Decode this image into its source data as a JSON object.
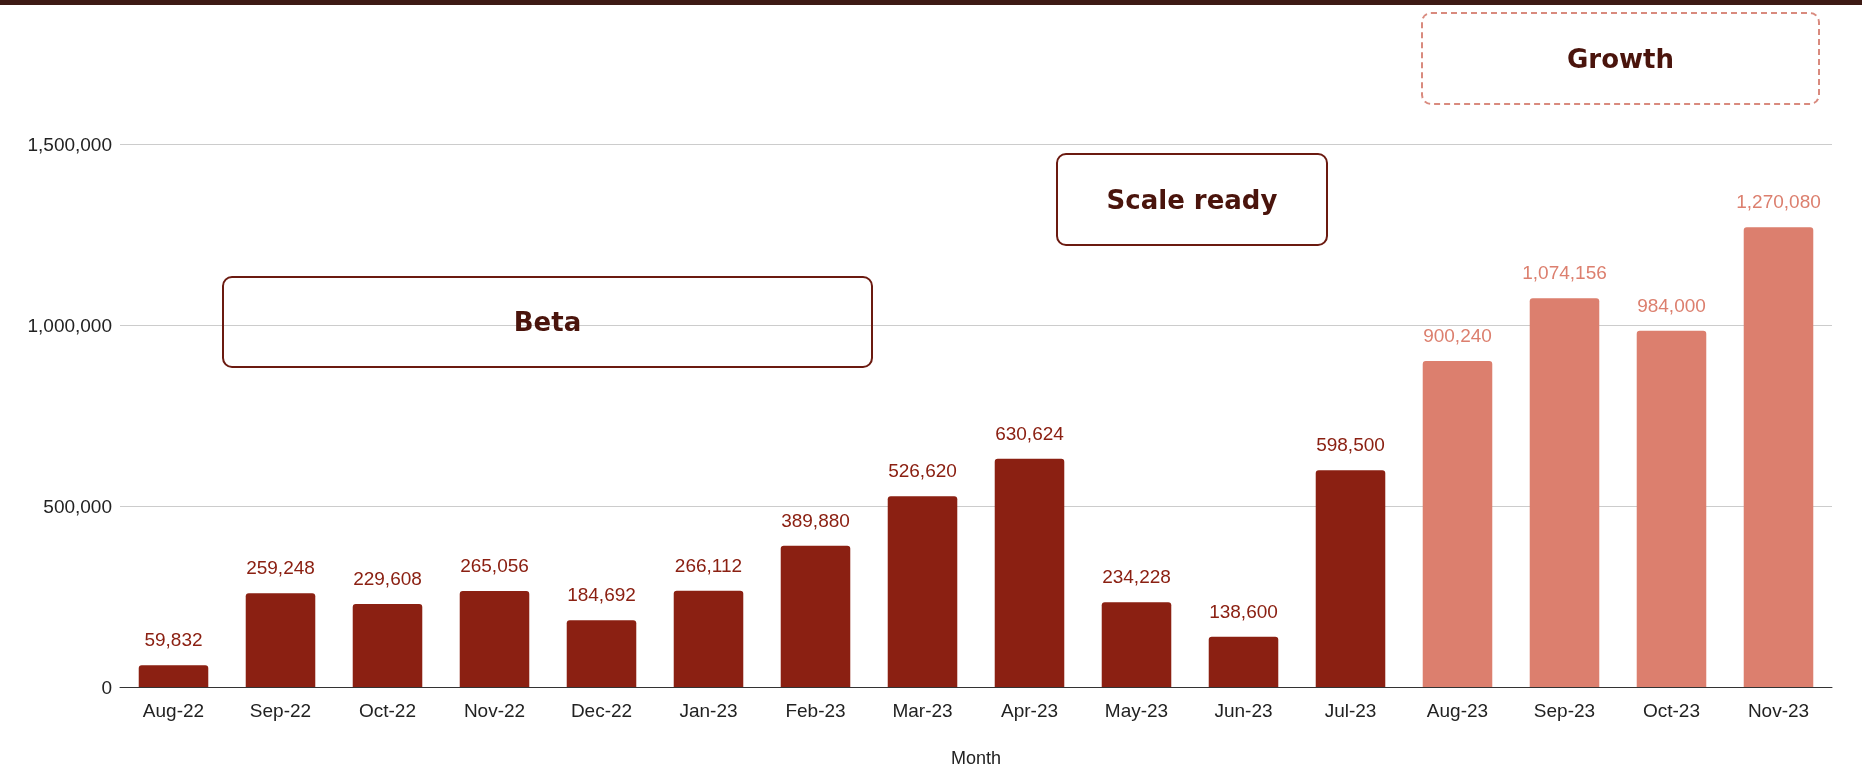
{
  "chart_data": {
    "type": "bar",
    "xlabel": "Month",
    "categories": [
      "Aug-22",
      "Sep-22",
      "Oct-22",
      "Nov-22",
      "Dec-22",
      "Jan-23",
      "Feb-23",
      "Mar-23",
      "Apr-23",
      "May-23",
      "Jun-23",
      "Jul-23",
      "Aug-23",
      "Sep-23",
      "Oct-23",
      "Nov-23"
    ],
    "values": [
      59832,
      259248,
      229608,
      265056,
      184692,
      266112,
      389880,
      526620,
      630624,
      234228,
      138600,
      598500,
      900240,
      1074156,
      984000,
      1270080
    ],
    "colors": [
      "#8b2012",
      "#8b2012",
      "#8b2012",
      "#8b2012",
      "#8b2012",
      "#8b2012",
      "#8b2012",
      "#8b2012",
      "#8b2012",
      "#8b2012",
      "#8b2012",
      "#8b2012",
      "#dc7f6e",
      "#dc7f6e",
      "#dc7f6e",
      "#dc7f6e"
    ],
    "value_labels": [
      "59,832",
      "259,248",
      "229,608",
      "265,056",
      "184,692",
      "266,112",
      "389,880",
      "526,620",
      "630,624",
      "234,228",
      "138,600",
      "598,500",
      "900,240",
      "1,074,156",
      "984,000",
      "1,270,080"
    ],
    "ylim": [
      0,
      1500000
    ],
    "yticks": [
      0,
      {
        "value": 500000,
        "label": "500,000"
      },
      {
        "value": 1000000,
        "label": "1,000,000"
      },
      {
        "value": 1500000,
        "label": "1,500,000"
      }
    ],
    "grid": "y",
    "annotations": [
      "Beta",
      "Scale ready",
      "Growth"
    ]
  }
}
